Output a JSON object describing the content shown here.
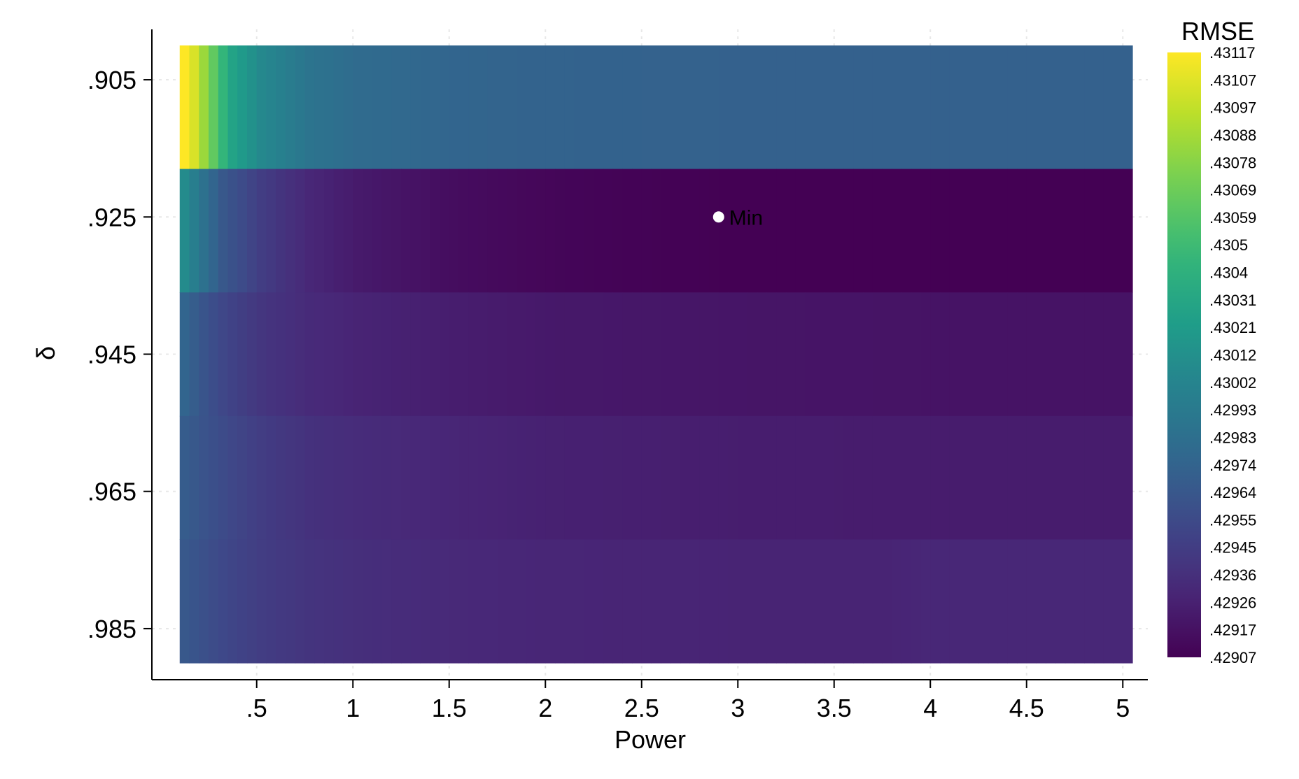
{
  "chart_data": {
    "type": "heatmap",
    "title": "",
    "xlabel": "Power",
    "ylabel": "δ",
    "x_ticks": [
      ".5",
      "1",
      "1.5",
      "2",
      "2.5",
      "3",
      "3.5",
      "4",
      "4.5",
      "5"
    ],
    "x_tick_values": [
      0.5,
      1,
      1.5,
      2,
      2.5,
      3,
      3.5,
      4,
      4.5,
      5
    ],
    "y_ticks": [
      ".905",
      ".925",
      ".945",
      ".965",
      ".985"
    ],
    "y_tick_values": [
      0.905,
      0.925,
      0.945,
      0.965,
      0.985
    ],
    "x_range": [
      0.05,
      5.05
    ],
    "x_start": 0.1,
    "x_end": 5.05,
    "x_step": 0.05,
    "y_range": [
      0.9,
      0.99
    ],
    "rows": [
      {
        "delta": 0.905,
        "profile": [
          [
            0.1,
            0.43117
          ],
          [
            0.15,
            0.43105
          ],
          [
            0.2,
            0.43085
          ],
          [
            0.25,
            0.43065
          ],
          [
            0.3,
            0.43045
          ],
          [
            0.35,
            0.43028
          ],
          [
            0.5,
            0.43005
          ],
          [
            0.75,
            0.42988
          ],
          [
            1.0,
            0.4298
          ],
          [
            1.5,
            0.42975
          ],
          [
            2.0,
            0.42973
          ],
          [
            3.0,
            0.42972
          ],
          [
            4.0,
            0.42972
          ],
          [
            5.0,
            0.42972
          ]
        ]
      },
      {
        "delta": 0.925,
        "profile": [
          [
            0.1,
            0.43008
          ],
          [
            0.2,
            0.42985
          ],
          [
            0.3,
            0.42965
          ],
          [
            0.5,
            0.42945
          ],
          [
            0.75,
            0.4293
          ],
          [
            1.0,
            0.42922
          ],
          [
            1.5,
            0.42914
          ],
          [
            2.0,
            0.4291
          ],
          [
            2.5,
            0.42908
          ],
          [
            3.0,
            0.42907
          ],
          [
            4.0,
            0.42907
          ],
          [
            5.0,
            0.42907
          ]
        ]
      },
      {
        "delta": 0.945,
        "profile": [
          [
            0.1,
            0.42975
          ],
          [
            0.2,
            0.42962
          ],
          [
            0.3,
            0.42952
          ],
          [
            0.5,
            0.4294
          ],
          [
            0.75,
            0.42932
          ],
          [
            1.0,
            0.42928
          ],
          [
            1.5,
            0.42924
          ],
          [
            2.0,
            0.42921
          ],
          [
            3.0,
            0.42919
          ],
          [
            4.0,
            0.42918
          ],
          [
            5.0,
            0.42918
          ]
        ]
      },
      {
        "delta": 0.965,
        "profile": [
          [
            0.1,
            0.42968
          ],
          [
            0.3,
            0.42955
          ],
          [
            0.5,
            0.42945
          ],
          [
            0.75,
            0.42937
          ],
          [
            1.0,
            0.42933
          ],
          [
            1.5,
            0.42929
          ],
          [
            2.0,
            0.42926
          ],
          [
            3.0,
            0.42924
          ],
          [
            4.0,
            0.42923
          ],
          [
            5.0,
            0.42923
          ]
        ]
      },
      {
        "delta": 0.985,
        "profile": [
          [
            0.1,
            0.42965
          ],
          [
            0.3,
            0.42953
          ],
          [
            0.5,
            0.42945
          ],
          [
            0.75,
            0.42939
          ],
          [
            1.0,
            0.42935
          ],
          [
            1.5,
            0.42931
          ],
          [
            2.0,
            0.42929
          ],
          [
            3.0,
            0.42928
          ],
          [
            3.75,
            0.42928
          ],
          [
            4.0,
            0.4293
          ],
          [
            5.0,
            0.4293
          ]
        ]
      }
    ],
    "min_point": {
      "x": 2.9,
      "y": 0.925,
      "label": "Min"
    },
    "colorbar": {
      "title": "RMSE",
      "min": 0.42907,
      "max": 0.43117,
      "labels": [
        ".43117",
        ".43107",
        ".43097",
        ".43088",
        ".43078",
        ".43069",
        ".43059",
        ".4305",
        ".4304",
        ".43031",
        ".43021",
        ".43012",
        ".43002",
        ".42993",
        ".42983",
        ".42974",
        ".42964",
        ".42955",
        ".42945",
        ".42936",
        ".42926",
        ".42917",
        ".42907"
      ]
    },
    "grid": true,
    "legend_position": "right",
    "colormap": [
      "#440154",
      "#482878",
      "#3e4989",
      "#31688e",
      "#26828e",
      "#1f9e89",
      "#35b779",
      "#6ece58",
      "#b5de2b",
      "#fde725"
    ]
  }
}
